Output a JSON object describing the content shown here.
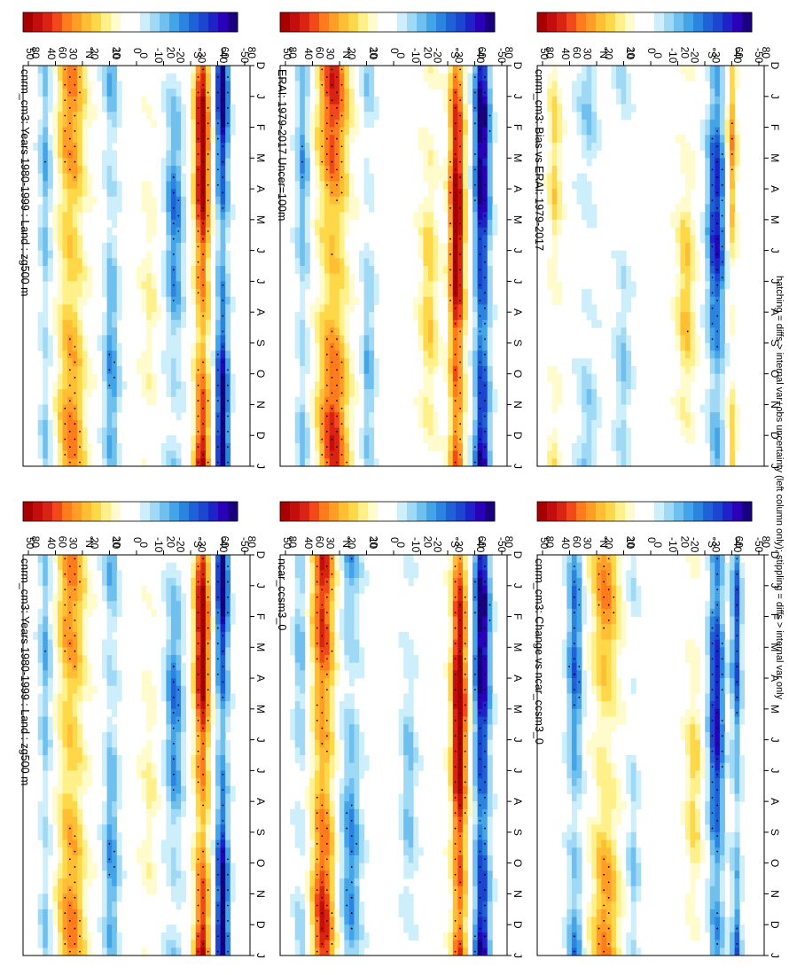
{
  "figure": {
    "footnote": "hatching = diffs > internal var+obs uncertainty (left column only); stippling = diffs > internal var only"
  },
  "colors": {
    "positive": [
      "#fffbcc",
      "#fff08a",
      "#ffd84a",
      "#ffbe34",
      "#ff9d26",
      "#ff7b1c",
      "#f2481a",
      "#d92414",
      "#c40e0e",
      "#a80000"
    ],
    "negative": [
      "#cdeffb",
      "#9fd9f5",
      "#6fc0ef",
      "#43a4e8",
      "#2a84e0",
      "#1f62d8",
      "#1c45d0",
      "#1f22c8",
      "#2a00b8",
      "#1a0080"
    ],
    "stipple": "#000000"
  },
  "colorbar": {
    "ticks": [
      "50",
      "40",
      "30",
      "20",
      "10",
      "0",
      "-10",
      "-20",
      "-30",
      "-40",
      "-50"
    ]
  },
  "axes": {
    "month_ticks": [
      "D",
      "J",
      "F",
      "M",
      "A",
      "M",
      "J",
      "J",
      "A",
      "S",
      "O",
      "N",
      "D",
      "J"
    ],
    "lat_ticks": [
      "80",
      "60",
      "°N",
      "20",
      "0",
      "20",
      "°S",
      "60",
      "80"
    ]
  },
  "chart_data": [
    {
      "type": "heatmap",
      "panel": "left-top",
      "title": "cnrm_cm3: Years 1980-1999 : Land : zg500 m",
      "x": [
        "D",
        "J",
        "F",
        "M",
        "A",
        "M",
        "J",
        "J",
        "A",
        "S",
        "O",
        "N",
        "D",
        "J"
      ],
      "y": [
        "80N",
        "60N",
        "40N",
        "20N",
        "0",
        "20S",
        "40S",
        "60S",
        "80S"
      ],
      "clim": [
        -50,
        50
      ],
      "bands": [
        {
          "lat": 72,
          "amp": -14,
          "w": 5,
          "seas": 0.4
        },
        {
          "lat": 52,
          "amp": 24,
          "w": 11,
          "seas": 0.3
        },
        {
          "lat": 20,
          "amp": -16,
          "w": 6,
          "seas": 0.5
        },
        {
          "lat": -10,
          "amp": 6,
          "w": 6,
          "seas": 0.7
        },
        {
          "lat": -30,
          "amp": -18,
          "w": 7,
          "seas": 0.6
        },
        {
          "lat": -52,
          "amp": 40,
          "w": 6,
          "seas": 0.4
        },
        {
          "lat": -68,
          "amp": -38,
          "w": 5,
          "seas": 0.5
        }
      ]
    },
    {
      "type": "heatmap",
      "panel": "left-middle",
      "title": "ERAI: 1979-2017 Uncer=100m",
      "x": [
        "D",
        "J",
        "F",
        "M",
        "A",
        "M",
        "J",
        "J",
        "A",
        "S",
        "O",
        "N",
        "D",
        "J"
      ],
      "y": [
        "80N",
        "60N",
        "40N",
        "20N",
        "0",
        "20S",
        "40S",
        "60S",
        "80S"
      ],
      "clim": [
        -50,
        50
      ],
      "bands": [
        {
          "lat": 72,
          "amp": -16,
          "w": 5,
          "seas": 0.4
        },
        {
          "lat": 48,
          "amp": 30,
          "w": 12,
          "seas": 0.4
        },
        {
          "lat": 20,
          "amp": -12,
          "w": 5,
          "seas": 0.6
        },
        {
          "lat": -28,
          "amp": 12,
          "w": 7,
          "seas": 0.6
        },
        {
          "lat": -50,
          "amp": 44,
          "w": 6,
          "seas": 0.3
        },
        {
          "lat": -70,
          "amp": -44,
          "w": 6,
          "seas": 0.3
        }
      ]
    },
    {
      "type": "heatmap",
      "panel": "left-bottom",
      "title": "cnrm_cm3: Bias vs ERAI: 1979-2017",
      "x": [
        "D",
        "J",
        "F",
        "M",
        "A",
        "M",
        "J",
        "J",
        "A",
        "S",
        "O",
        "N",
        "D",
        "J"
      ],
      "y": [
        "80N",
        "60N",
        "40N",
        "20N",
        "0",
        "20S",
        "40S",
        "60S",
        "80S"
      ],
      "clim": [
        -50,
        50
      ],
      "bands": [
        {
          "lat": 76,
          "amp": 10,
          "w": 5,
          "seas": 0.8
        },
        {
          "lat": 50,
          "amp": -8,
          "w": 8,
          "seas": 0.8
        },
        {
          "lat": 22,
          "amp": -8,
          "w": 6,
          "seas": 0.9
        },
        {
          "lat": -28,
          "amp": 12,
          "w": 7,
          "seas": 0.8
        },
        {
          "lat": -52,
          "amp": -30,
          "w": 7,
          "seas": 0.5
        },
        {
          "lat": -64,
          "amp": 16,
          "w": 4,
          "seas": 0.8
        }
      ]
    },
    {
      "type": "heatmap",
      "panel": "right-top",
      "title": "cnrm_cm3: Years 1980-1999 : Land : zg500 m",
      "x": [
        "D",
        "J",
        "F",
        "M",
        "A",
        "M",
        "J",
        "J",
        "A",
        "S",
        "O",
        "N",
        "D",
        "J"
      ],
      "y": [
        "80N",
        "60N",
        "40N",
        "20N",
        "0",
        "20S",
        "40S",
        "60S",
        "80S"
      ],
      "clim": [
        -50,
        50
      ],
      "bands": [
        {
          "lat": 72,
          "amp": -14,
          "w": 5,
          "seas": 0.4
        },
        {
          "lat": 52,
          "amp": 24,
          "w": 11,
          "seas": 0.3
        },
        {
          "lat": 20,
          "amp": -16,
          "w": 6,
          "seas": 0.5
        },
        {
          "lat": -10,
          "amp": 6,
          "w": 6,
          "seas": 0.7
        },
        {
          "lat": -30,
          "amp": -18,
          "w": 7,
          "seas": 0.6
        },
        {
          "lat": -52,
          "amp": 40,
          "w": 6,
          "seas": 0.4
        },
        {
          "lat": -68,
          "amp": -38,
          "w": 5,
          "seas": 0.5
        }
      ]
    },
    {
      "type": "heatmap",
      "panel": "right-middle",
      "title": "ncar_ccsm3_0",
      "x": [
        "D",
        "J",
        "F",
        "M",
        "A",
        "M",
        "J",
        "J",
        "A",
        "S",
        "O",
        "N",
        "D",
        "J"
      ],
      "y": [
        "80N",
        "60N",
        "40N",
        "20N",
        "0",
        "20S",
        "40S",
        "60S",
        "80S"
      ],
      "clim": [
        -50,
        50
      ],
      "bands": [
        {
          "lat": 74,
          "amp": -12,
          "w": 5,
          "seas": 0.5
        },
        {
          "lat": 56,
          "amp": 34,
          "w": 9,
          "seas": 0.3
        },
        {
          "lat": 34,
          "amp": -18,
          "w": 8,
          "seas": 0.5
        },
        {
          "lat": -12,
          "amp": -10,
          "w": 6,
          "seas": 0.7
        },
        {
          "lat": -52,
          "amp": 46,
          "w": 6,
          "seas": 0.3
        },
        {
          "lat": -70,
          "amp": -44,
          "w": 6,
          "seas": 0.3
        }
      ]
    },
    {
      "type": "heatmap",
      "panel": "right-bottom",
      "title": "cnrm_cm3: Change vs ncar_ccsm3_0",
      "x": [
        "D",
        "J",
        "F",
        "M",
        "A",
        "M",
        "J",
        "J",
        "A",
        "S",
        "O",
        "N",
        "D",
        "J"
      ],
      "y": [
        "80N",
        "60N",
        "40N",
        "20N",
        "0",
        "20S",
        "40S",
        "60S",
        "80S"
      ],
      "clim": [
        -50,
        50
      ],
      "bands": [
        {
          "lat": 60,
          "amp": -22,
          "w": 6,
          "seas": 0.5
        },
        {
          "lat": 36,
          "amp": 20,
          "w": 11,
          "seas": 0.5
        },
        {
          "lat": 14,
          "amp": -8,
          "w": 5,
          "seas": 0.8
        },
        {
          "lat": -34,
          "amp": 10,
          "w": 6,
          "seas": 0.8
        },
        {
          "lat": -52,
          "amp": -34,
          "w": 6,
          "seas": 0.4
        },
        {
          "lat": -68,
          "amp": -24,
          "w": 4,
          "seas": 0.5
        }
      ]
    }
  ]
}
